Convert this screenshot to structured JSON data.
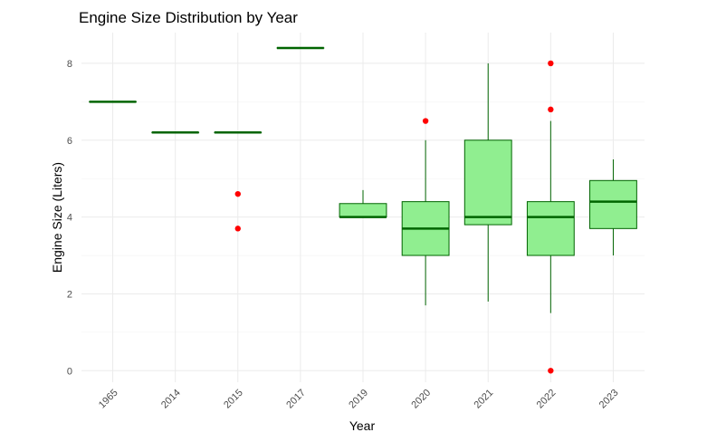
{
  "chart_data": {
    "type": "boxplot",
    "title": "Engine Size Distribution by Year",
    "xlabel": "Year",
    "ylabel": "Engine Size (Liters)",
    "ylim": [
      -0.3,
      8.8
    ],
    "y_ticks": [
      0,
      2,
      4,
      6,
      8
    ],
    "categories": [
      "1965",
      "2014",
      "2015",
      "2017",
      "2019",
      "2020",
      "2021",
      "2022",
      "2023"
    ],
    "boxes": [
      {
        "category": "1965",
        "min": 7.0,
        "q1": 7.0,
        "median": 7.0,
        "q3": 7.0,
        "max": 7.0,
        "outliers": []
      },
      {
        "category": "2014",
        "min": 6.2,
        "q1": 6.2,
        "median": 6.2,
        "q3": 6.2,
        "max": 6.2,
        "outliers": []
      },
      {
        "category": "2015",
        "min": 6.2,
        "q1": 6.2,
        "median": 6.2,
        "q3": 6.2,
        "max": 6.2,
        "outliers": [
          4.6,
          3.7
        ]
      },
      {
        "category": "2017",
        "min": 8.4,
        "q1": 8.4,
        "median": 8.4,
        "q3": 8.4,
        "max": 8.4,
        "outliers": []
      },
      {
        "category": "2019",
        "min": 4.0,
        "q1": 4.0,
        "median": 4.0,
        "q3": 4.35,
        "max": 4.7,
        "outliers": []
      },
      {
        "category": "2020",
        "min": 1.7,
        "q1": 3.0,
        "median": 3.7,
        "q3": 4.4,
        "max": 6.0,
        "outliers": [
          6.5
        ]
      },
      {
        "category": "2021",
        "min": 1.8,
        "q1": 3.8,
        "median": 4.0,
        "q3": 6.0,
        "max": 8.0,
        "outliers": []
      },
      {
        "category": "2022",
        "min": 1.5,
        "q1": 3.0,
        "median": 4.0,
        "q3": 4.4,
        "max": 6.5,
        "outliers": [
          8.0,
          6.8,
          0.0
        ]
      },
      {
        "category": "2023",
        "min": 3.0,
        "q1": 3.7,
        "median": 4.4,
        "q3": 4.95,
        "max": 5.5,
        "outliers": []
      }
    ],
    "colors": {
      "box_fill": "#90ee90",
      "box_line": "#006400",
      "outlier": "#ff0000",
      "grid": "#ebebeb",
      "text": "#4d4d4d"
    },
    "grid": true,
    "legend": "none"
  }
}
